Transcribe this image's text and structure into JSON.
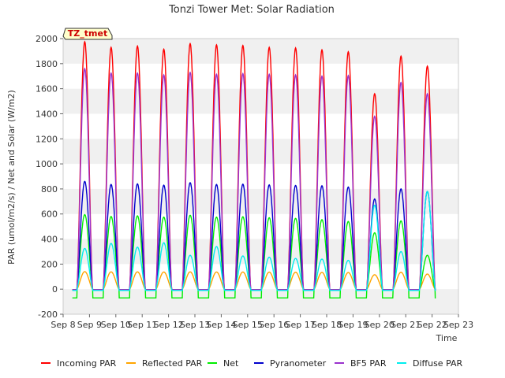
{
  "chart_data": {
    "type": "line",
    "title": "Tonzi Tower Met: Solar Radiation",
    "xlabel": "Time",
    "ylabel": "PAR (umol/m2/s) / Net and Solar (W/m2)",
    "ylim": [
      -200,
      2000
    ],
    "yticks": [
      -200,
      0,
      200,
      400,
      600,
      800,
      1000,
      1200,
      1400,
      1600,
      1800,
      2000
    ],
    "xlim_days": [
      8,
      23
    ],
    "xticks": [
      "Sep 8",
      "Sep 9",
      "Sep 10",
      "Sep 11",
      "Sep 12",
      "Sep 13",
      "Sep 14",
      "Sep 15",
      "Sep 16",
      "Sep 17",
      "Sep 18",
      "Sep 19",
      "Sep 20",
      "Sep 21",
      "Sep 22",
      "Sep 23"
    ],
    "grid": "horizontal bands",
    "legend_position": "bottom",
    "annotation": "TZ_tmet",
    "day_centers": [
      8.82,
      9.82,
      10.82,
      11.82,
      12.82,
      13.82,
      14.82,
      15.82,
      16.82,
      17.82,
      18.82,
      19.82,
      20.82,
      21.82
    ],
    "series": [
      {
        "name": "Incoming PAR",
        "color": "#ff0000",
        "night": -5,
        "peaks": [
          1975,
          1930,
          1940,
          1915,
          1960,
          1950,
          1945,
          1930,
          1925,
          1910,
          1895,
          1560,
          1860,
          1780
        ]
      },
      {
        "name": "Reflected PAR",
        "color": "#ffa500",
        "night": -5,
        "peaks": [
          140,
          138,
          138,
          137,
          138,
          137,
          137,
          136,
          135,
          134,
          133,
          115,
          135,
          120
        ]
      },
      {
        "name": "Net",
        "color": "#00ee00",
        "night": -70,
        "peaks": [
          595,
          580,
          585,
          575,
          590,
          575,
          578,
          570,
          565,
          555,
          540,
          450,
          545,
          270
        ]
      },
      {
        "name": "Pyranometer",
        "color": "#0000cc",
        "night": -5,
        "peaks": [
          860,
          835,
          840,
          830,
          850,
          835,
          838,
          832,
          828,
          825,
          815,
          720,
          800,
          780
        ]
      },
      {
        "name": "BF5 PAR",
        "color": "#9a32cd",
        "night": -5,
        "peaks": [
          1760,
          1725,
          1725,
          1710,
          1730,
          1715,
          1720,
          1715,
          1710,
          1700,
          1705,
          1380,
          1650,
          1560
        ]
      },
      {
        "name": "Diffuse PAR",
        "color": "#00eeee",
        "night": -10,
        "peaks": [
          325,
          365,
          335,
          370,
          270,
          340,
          265,
          255,
          245,
          240,
          230,
          670,
          300,
          780
        ]
      }
    ]
  }
}
